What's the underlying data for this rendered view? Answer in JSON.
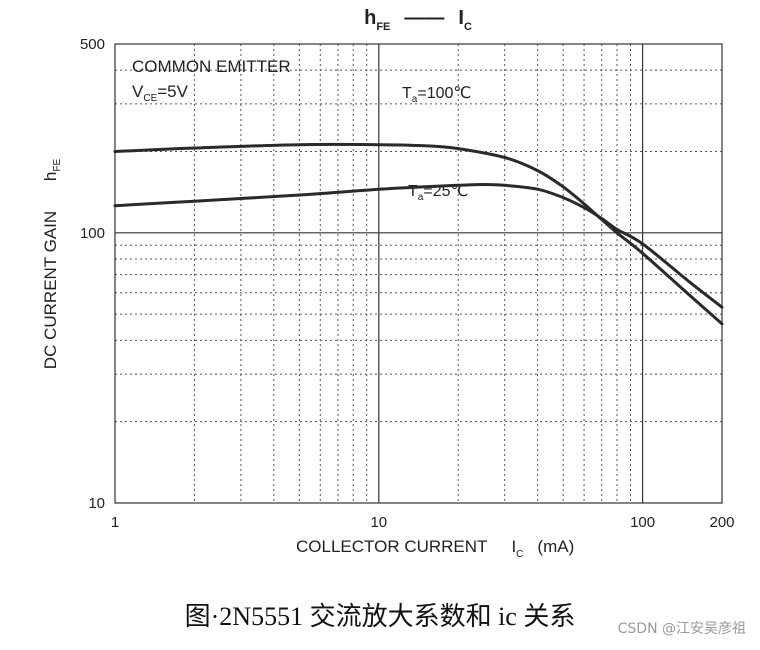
{
  "chart_data": {
    "type": "line",
    "title": {
      "main": "h",
      "main_sub": "FE",
      "dash": "——",
      "second": "I",
      "second_sub": "C"
    },
    "ylabel": {
      "main": "DC CURRENT GAIN",
      "symbol": "h",
      "symbol_sub": "FE"
    },
    "xlabel": {
      "text": "COLLECTOR CURRENT",
      "symbol": "I",
      "symbol_sub": "C",
      "unit": "(mA)"
    },
    "annotations": {
      "mode": "COMMON EMITTER",
      "vce_prefix": "V",
      "vce_sub": "CE",
      "vce_value": "=5V"
    },
    "x_scale": "log",
    "y_scale": "log",
    "xlim": [
      1,
      200
    ],
    "ylim": [
      10,
      500
    ],
    "x_ticks": [
      {
        "value": 1,
        "label": "1"
      },
      {
        "value": 10,
        "label": "10"
      },
      {
        "value": 100,
        "label": "100"
      },
      {
        "value": 200,
        "label": "200"
      }
    ],
    "y_ticks": [
      {
        "value": 10,
        "label": "10"
      },
      {
        "value": 100,
        "label": "100"
      },
      {
        "value": 500,
        "label": "500"
      }
    ],
    "grid": true,
    "series": [
      {
        "label_prefix": "T",
        "label_sub": "a",
        "label_value": "=100℃",
        "x": [
          1,
          2,
          5,
          10,
          15,
          20,
          30,
          40,
          50,
          60,
          70,
          80,
          100,
          150,
          200
        ],
        "y": [
          200,
          206,
          212,
          212,
          210,
          205,
          190,
          170,
          148,
          128,
          112,
          100,
          84,
          59,
          46
        ]
      },
      {
        "label_prefix": "T",
        "label_sub": "a",
        "label_value": "=25℃",
        "x": [
          1,
          2,
          5,
          10,
          15,
          20,
          25,
          30,
          40,
          50,
          60,
          70,
          80,
          100,
          150,
          200
        ],
        "y": [
          126,
          131,
          138,
          145,
          148,
          150,
          151,
          150,
          145,
          135,
          124,
          113,
          103,
          91,
          66,
          53
        ]
      }
    ]
  },
  "caption": "图·2N5551 交流放大系数和 ic 关系",
  "watermark": "CSDN @江安吴彦祖"
}
